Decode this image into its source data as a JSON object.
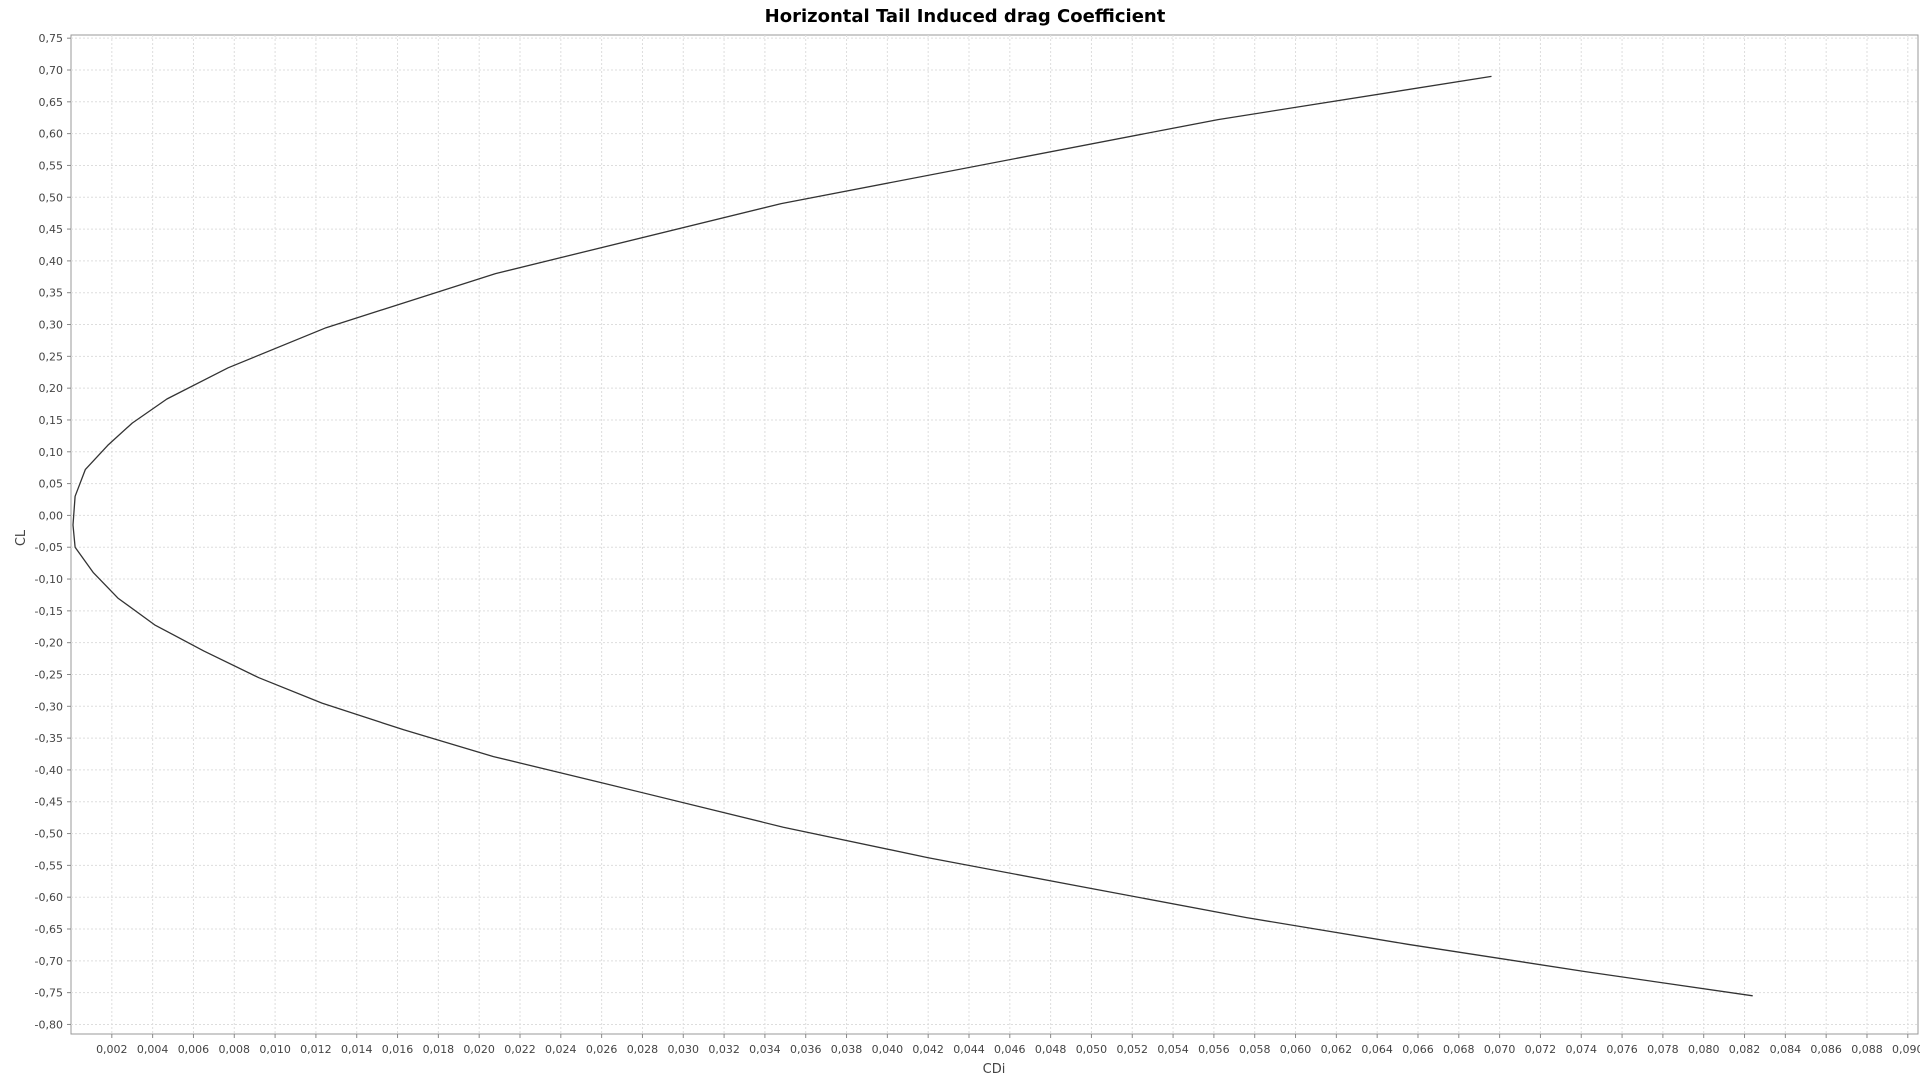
{
  "chart_data": {
    "type": "line",
    "title": "Horizontal Tail Induced drag Coefficient",
    "xlabel": "CDi",
    "ylabel": "CL",
    "xlim": [
      0.0,
      0.0905
    ],
    "ylim": [
      -0.815,
      0.755
    ],
    "grid": true,
    "x_ticks": [
      "0,002",
      "0,004",
      "0,006",
      "0,008",
      "0,010",
      "0,012",
      "0,014",
      "0,016",
      "0,018",
      "0,020",
      "0,022",
      "0,024",
      "0,026",
      "0,028",
      "0,030",
      "0,032",
      "0,034",
      "0,036",
      "0,038",
      "0,040",
      "0,042",
      "0,044",
      "0,046",
      "0,048",
      "0,050",
      "0,052",
      "0,054",
      "0,056",
      "0,058",
      "0,060",
      "0,062",
      "0,064",
      "0,066",
      "0,068",
      "0,070",
      "0,072",
      "0,074",
      "0,076",
      "0,078",
      "0,080",
      "0,082",
      "0,084",
      "0,086",
      "0,088",
      "0,090"
    ],
    "y_ticks": [
      "0,75",
      "0,70",
      "0,65",
      "0,60",
      "0,55",
      "0,50",
      "0,45",
      "0,40",
      "0,35",
      "0,30",
      "0,25",
      "0,20",
      "0,15",
      "0,10",
      "0,05",
      "0,00",
      "-0,05",
      "-0,10",
      "-0,15",
      "-0,20",
      "-0,25",
      "-0,30",
      "-0,35",
      "-0,40",
      "-0,45",
      "-0,50",
      "-0,55",
      "-0,60",
      "-0,65",
      "-0,70",
      "-0,75",
      "-0,80"
    ],
    "series": [
      {
        "color": "#333333",
        "x": [
          0.0696,
          0.0562,
          0.0348,
          0.0208,
          0.0125,
          0.0077,
          0.0047,
          0.003,
          0.0018,
          0.0007,
          0.0002,
          0.0001,
          0.0002,
          0.0011,
          0.0023,
          0.0041,
          0.0065,
          0.0092,
          0.0123,
          0.0163,
          0.0207,
          0.026,
          0.0349,
          0.042,
          0.0496,
          0.0576,
          0.0655,
          0.0742,
          0.0824
        ],
        "y": [
          0.69,
          0.622,
          0.49,
          0.38,
          0.295,
          0.232,
          0.183,
          0.145,
          0.11,
          0.072,
          0.03,
          -0.015,
          -0.05,
          -0.09,
          -0.13,
          -0.172,
          -0.213,
          -0.255,
          -0.295,
          -0.337,
          -0.379,
          -0.42,
          -0.49,
          -0.538,
          -0.584,
          -0.632,
          -0.674,
          -0.717,
          -0.755
        ]
      }
    ]
  }
}
